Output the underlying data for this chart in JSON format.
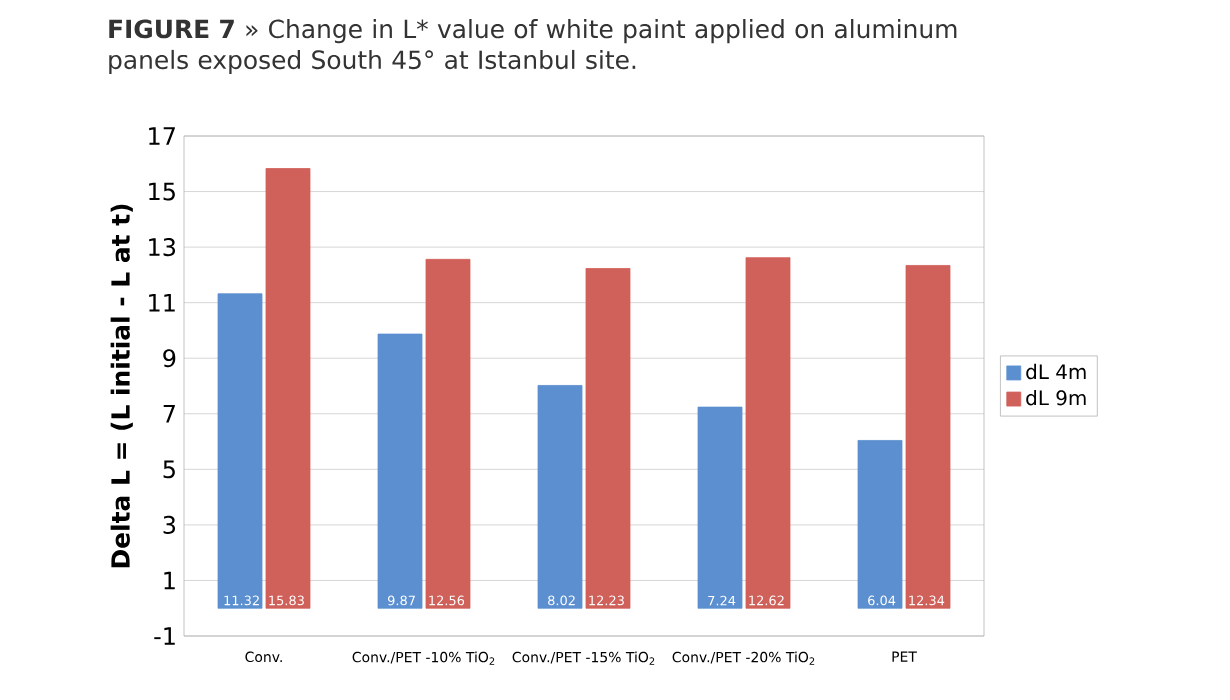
{
  "chart_data": {
    "type": "bar",
    "title": "**FIGURE 7** » Change in L* value of white paint applied on aluminum panels exposed South 45° at Istanbul site.",
    "ylabel": "Delta L = (L initial - L at t)",
    "categories": [
      "Conv.",
      "Conv./PET -10% TiO$_{2}$",
      "Conv./PET -15% TiO$_{2}$",
      "Conv./PET -20% TiO$_{2}$",
      "PET"
    ],
    "series": [
      {
        "name": "dL 4m",
        "color": "#5b8fd0",
        "values": [
          11.32,
          9.87,
          8.02,
          7.24,
          6.04
        ]
      },
      {
        "name": "dL 9m",
        "color": "#d0605a",
        "values": [
          15.83,
          12.56,
          12.23,
          12.62,
          12.34
        ]
      }
    ],
    "ylim": [
      -1,
      17
    ],
    "yticks": [
      -1,
      1,
      3,
      5,
      7,
      9,
      11,
      13,
      15,
      17
    ],
    "grid": "y",
    "legend": "right",
    "data_labels": true
  }
}
